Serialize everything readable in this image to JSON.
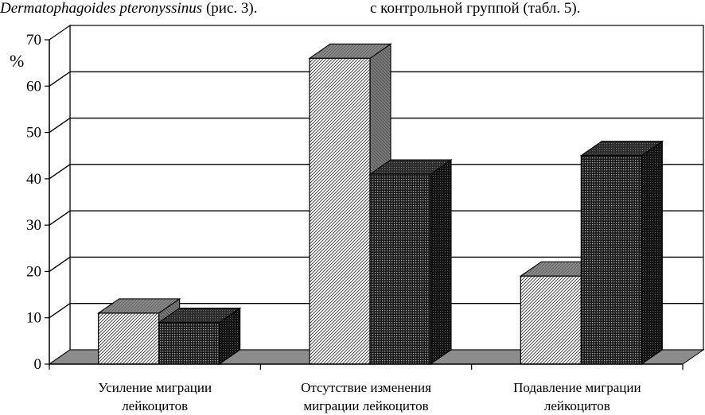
{
  "header": {
    "left_species": "Dermatophagoides pteronyssinus",
    "left_ref": " (рис. 3).",
    "right_text": "с контрольной группой (табл. 5)."
  },
  "chart_data": {
    "type": "bar",
    "style": "3d-clustered",
    "categories": [
      [
        "Усиление миграции",
        "лейкоцитов"
      ],
      [
        "Отсутствие изменения",
        "миграции лейкоцитов"
      ],
      [
        "Подавление миграции",
        "лейкоцитов"
      ]
    ],
    "series": [
      {
        "values": [
          11,
          66,
          19
        ],
        "pattern": "light-diagonal-hatch"
      },
      {
        "values": [
          9,
          41,
          45
        ],
        "pattern": "dark-dotted"
      }
    ],
    "ylabel": "%",
    "ylim": [
      0,
      70
    ],
    "yticks": [
      0,
      10,
      20,
      30,
      40,
      50,
      60,
      70
    ],
    "grid": true,
    "legend": "none"
  }
}
